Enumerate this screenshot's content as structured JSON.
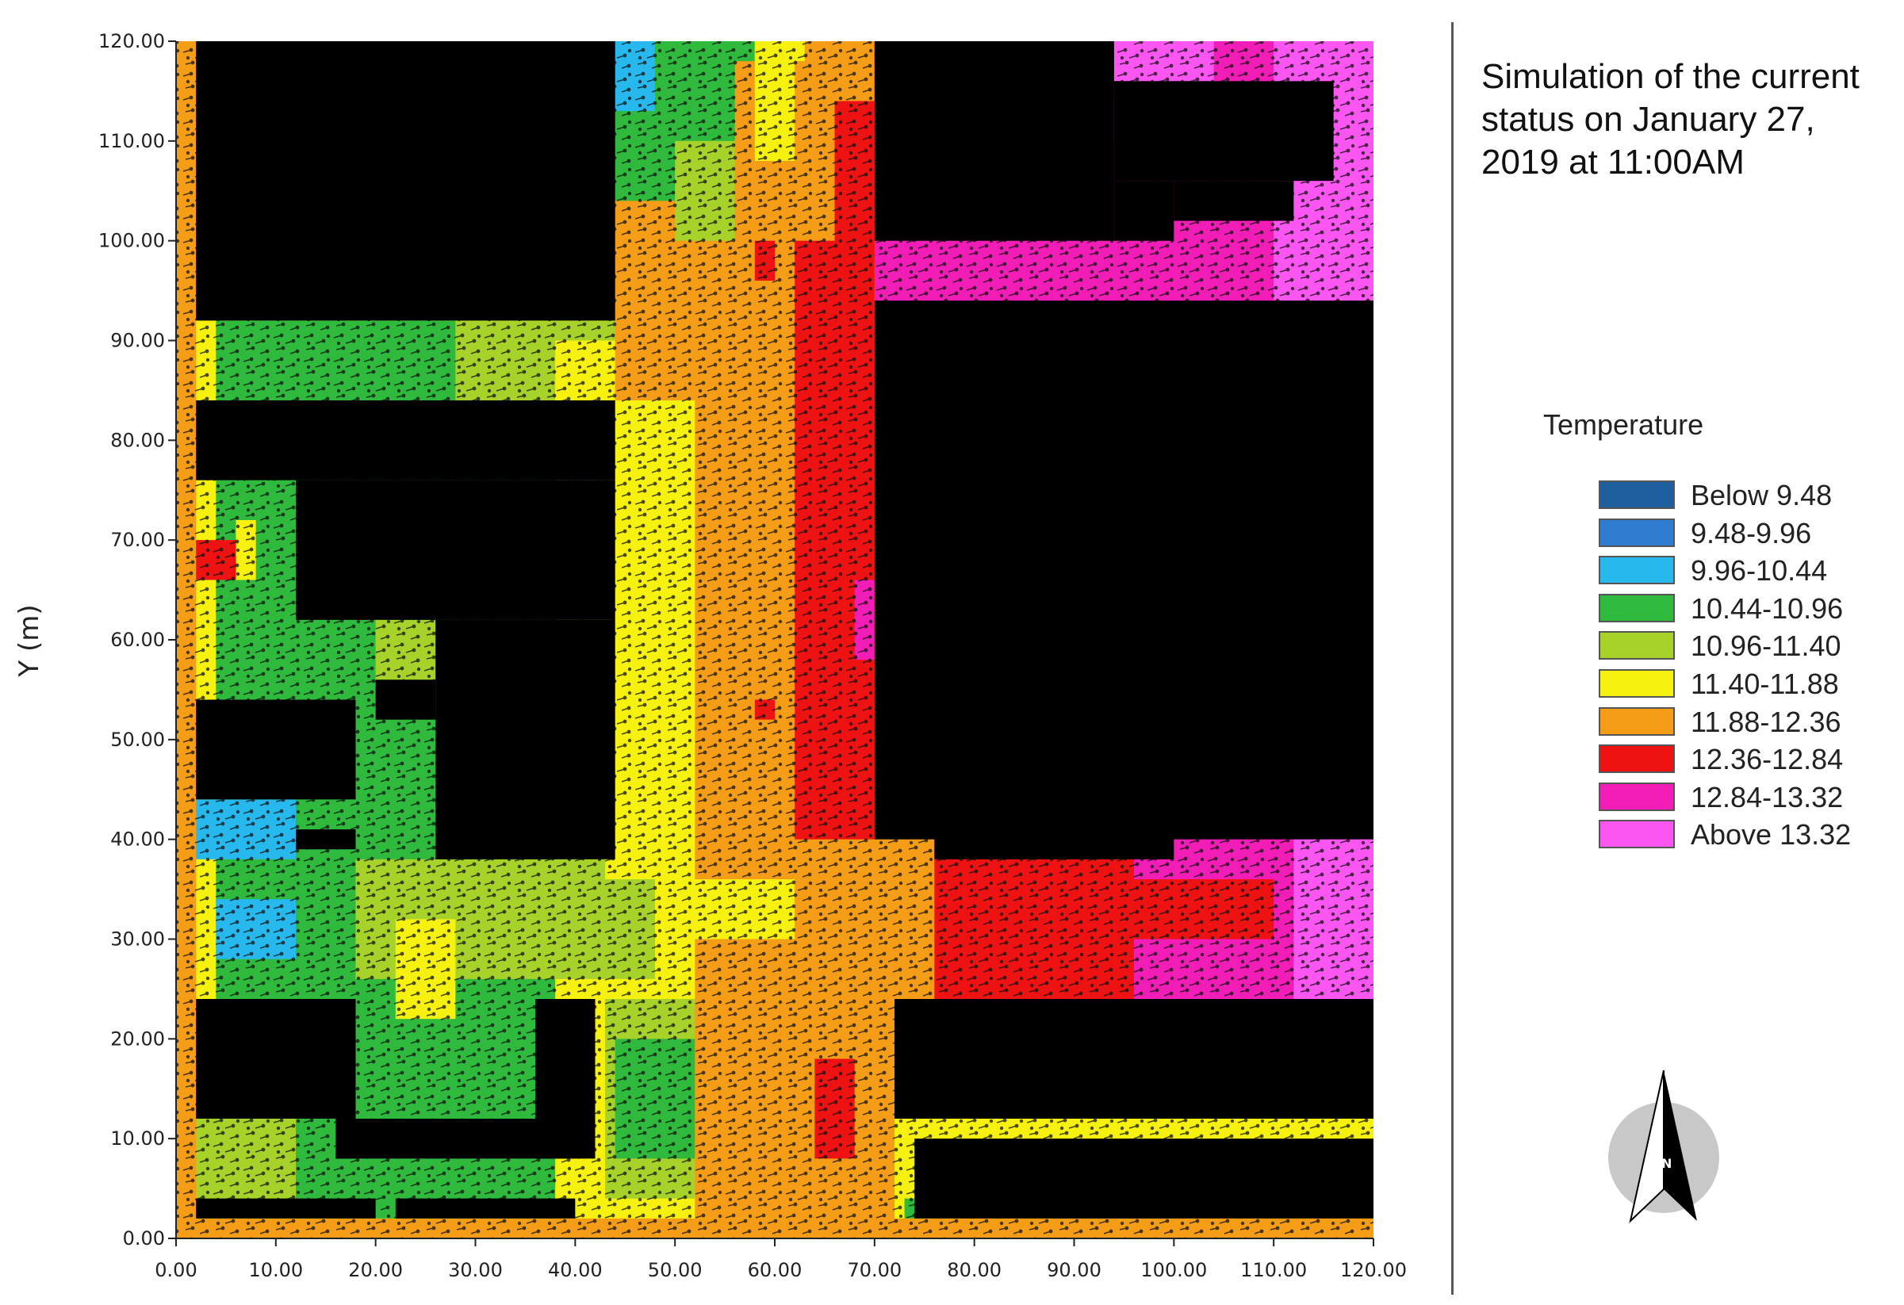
{
  "title": "Simulation of the current status on January 27, 2019 at 11:00AM",
  "legend": {
    "title": "Temperature",
    "items": [
      {
        "label": "Below 9.48",
        "color": "#1f5f9e"
      },
      {
        "label": "9.48-9.96",
        "color": "#2f7bd0"
      },
      {
        "label": "9.96-10.44",
        "color": "#27b8ee"
      },
      {
        "label": "10.44-10.96",
        "color": "#2fba3d"
      },
      {
        "label": "10.96-11.40",
        "color": "#a6d22a"
      },
      {
        "label": "11.40-11.88",
        "color": "#f6f10e"
      },
      {
        "label": "11.88-12.36",
        "color": "#f59d16"
      },
      {
        "label": "12.36-12.84",
        "color": "#ee1212"
      },
      {
        "label": "12.84-13.32",
        "color": "#f21cb6"
      },
      {
        "label": "Above 13.32",
        "color": "#fb55f2"
      }
    ]
  },
  "compass": {
    "letter": "N",
    "icon": "north-arrow-icon"
  },
  "chart_data": {
    "type": "heatmap",
    "title": "Simulation of the current status on January 27, 2019 at 11:00AM",
    "xlabel": "",
    "ylabel": "Y (m)",
    "xlim": [
      0,
      120
    ],
    "ylim": [
      0,
      120
    ],
    "x_ticks": [
      "0.00",
      "10.00",
      "20.00",
      "30.00",
      "40.00",
      "50.00",
      "60.00",
      "70.00",
      "80.00",
      "90.00",
      "100.00",
      "110.00",
      "120.00"
    ],
    "y_ticks": [
      "0.00",
      "10.00",
      "20.00",
      "30.00",
      "40.00",
      "50.00",
      "60.00",
      "70.00",
      "80.00",
      "90.00",
      "100.00",
      "110.00",
      "120.00"
    ],
    "categories": [
      "Below 9.48",
      "9.48-9.96",
      "9.96-10.44",
      "10.44-10.96",
      "10.96-11.40",
      "11.40-11.88",
      "11.88-12.36",
      "12.36-12.84",
      "12.84-13.32",
      "Above 13.32"
    ],
    "building_color": "#000000",
    "regions": [
      {
        "cls": "11.88-12.36",
        "x": [
          0,
          120
        ],
        "y": [
          0,
          120
        ]
      },
      {
        "cls": "11.40-11.88",
        "x": [
          2,
          62
        ],
        "y": [
          2,
          92
        ]
      },
      {
        "cls": "10.44-10.96",
        "x": [
          2,
          38
        ],
        "y": [
          2,
          92
        ]
      },
      {
        "cls": "10.96-11.40",
        "x": [
          2,
          12
        ],
        "y": [
          2,
          20
        ]
      },
      {
        "cls": "10.96-11.40",
        "x": [
          18,
          48
        ],
        "y": [
          26,
          38
        ]
      },
      {
        "cls": "10.96-11.40",
        "x": [
          28,
          47
        ],
        "y": [
          84,
          92
        ]
      },
      {
        "cls": "10.96-11.40",
        "x": [
          20,
          26
        ],
        "y": [
          56,
          62
        ]
      },
      {
        "cls": "11.40-11.88",
        "x": [
          38,
          47
        ],
        "y": [
          84,
          90
        ]
      },
      {
        "cls": "11.40-11.88",
        "x": [
          43,
          55
        ],
        "y": [
          36,
          44
        ]
      },
      {
        "cls": "11.40-11.88",
        "x": [
          44,
          56
        ],
        "y": [
          46,
          84
        ]
      },
      {
        "cls": "11.40-11.88",
        "x": [
          2,
          4
        ],
        "y": [
          84,
          92
        ]
      },
      {
        "cls": "11.40-11.88",
        "x": [
          2,
          4
        ],
        "y": [
          22,
          84
        ]
      },
      {
        "cls": "10.96-11.40",
        "x": [
          43,
          55
        ],
        "y": [
          4,
          24
        ]
      },
      {
        "cls": "10.44-10.96",
        "x": [
          44,
          52
        ],
        "y": [
          8,
          20
        ]
      },
      {
        "cls": "11.88-12.36",
        "x": [
          52,
          62
        ],
        "y": [
          36,
          84
        ]
      },
      {
        "cls": "11.88-12.36",
        "x": [
          44,
          62
        ],
        "y": [
          84,
          112
        ]
      },
      {
        "cls": "11.88-12.36",
        "x": [
          52,
          70
        ],
        "y": [
          2,
          30
        ]
      },
      {
        "cls": "10.44-10.96",
        "x": [
          44,
          58
        ],
        "y": [
          104,
          120
        ]
      },
      {
        "cls": "10.96-11.40",
        "x": [
          50,
          58
        ],
        "y": [
          100,
          110
        ]
      },
      {
        "cls": "11.40-11.88",
        "x": [
          58,
          63
        ],
        "y": [
          112,
          120
        ]
      },
      {
        "cls": "9.96-10.44",
        "x": [
          44,
          48
        ],
        "y": [
          113,
          120
        ]
      },
      {
        "cls": "11.88-12.36",
        "x": [
          56,
          70
        ],
        "y": [
          80,
          118
        ]
      },
      {
        "cls": "12.36-12.84",
        "x": [
          62,
          70
        ],
        "y": [
          40,
          100
        ]
      },
      {
        "cls": "12.36-12.84",
        "x": [
          66,
          70
        ],
        "y": [
          98,
          114
        ]
      },
      {
        "cls": "12.36-12.84",
        "x": [
          58,
          60
        ],
        "y": [
          96,
          100
        ]
      },
      {
        "cls": "12.36-12.84",
        "x": [
          58,
          60
        ],
        "y": [
          52,
          54
        ]
      },
      {
        "cls": "12.36-12.84",
        "x": [
          64,
          68
        ],
        "y": [
          8,
          18
        ]
      },
      {
        "cls": "12.36-12.84",
        "x": [
          76,
          120
        ],
        "y": [
          24,
          40
        ]
      },
      {
        "cls": "12.84-13.32",
        "x": [
          70,
          120
        ],
        "y": [
          84,
          120
        ]
      },
      {
        "cls": "12.84-13.32",
        "x": [
          70,
          76
        ],
        "y": [
          80,
          88
        ]
      },
      {
        "cls": "12.84-13.32",
        "x": [
          68,
          70
        ],
        "y": [
          58,
          66
        ]
      },
      {
        "cls": "Above 13.32",
        "x": [
          110,
          120
        ],
        "y": [
          94,
          120
        ]
      },
      {
        "cls": "Above 13.32",
        "x": [
          94,
          104
        ],
        "y": [
          116,
          120
        ]
      },
      {
        "cls": "Above 13.32",
        "x": [
          90,
          94
        ],
        "y": [
          110,
          114
        ]
      },
      {
        "cls": "12.84-13.32",
        "x": [
          96,
          120
        ],
        "y": [
          24,
          50
        ]
      },
      {
        "cls": "12.84-13.32",
        "x": [
          88,
          96
        ],
        "y": [
          40,
          50
        ]
      },
      {
        "cls": "12.84-13.32",
        "x": [
          96,
          100
        ],
        "y": [
          50,
          56
        ]
      },
      {
        "cls": "Above 13.32",
        "x": [
          112,
          120
        ],
        "y": [
          24,
          50
        ]
      },
      {
        "cls": "12.36-12.84",
        "x": [
          84,
          110
        ],
        "y": [
          30,
          36
        ]
      },
      {
        "cls": "11.40-11.88",
        "x": [
          72,
          120
        ],
        "y": [
          10,
          12
        ]
      },
      {
        "cls": "11.40-11.88",
        "x": [
          100,
          120
        ],
        "y": [
          10,
          14
        ]
      },
      {
        "cls": "11.40-11.88",
        "x": [
          72,
          76
        ],
        "y": [
          2,
          10
        ]
      },
      {
        "cls": "10.44-10.96",
        "x": [
          73,
          75
        ],
        "y": [
          2,
          4
        ]
      },
      {
        "cls": "11.40-11.88",
        "x": [
          58,
          62
        ],
        "y": [
          108,
          120
        ]
      },
      {
        "cls": "11.40-11.88",
        "x": [
          35,
          37
        ],
        "y": [
          46,
          50
        ]
      },
      {
        "cls": "11.40-11.88",
        "x": [
          6,
          8
        ],
        "y": [
          66,
          72
        ]
      },
      {
        "cls": "11.40-11.88",
        "x": [
          18,
          22
        ],
        "y": [
          62,
          66
        ]
      },
      {
        "cls": "11.40-11.88",
        "x": [
          22,
          28
        ],
        "y": [
          22,
          32
        ]
      },
      {
        "cls": "12.36-12.84",
        "x": [
          2,
          6
        ],
        "y": [
          66,
          70
        ]
      },
      {
        "cls": "12.36-12.84",
        "x": [
          18,
          20
        ],
        "y": [
          62,
          66
        ]
      },
      {
        "cls": "9.96-10.44",
        "x": [
          2,
          12
        ],
        "y": [
          38,
          44
        ]
      },
      {
        "cls": "9.96-10.44",
        "x": [
          4,
          12
        ],
        "y": [
          28,
          34
        ]
      },
      {
        "cls": "9.96-10.44",
        "x": [
          8,
          14
        ],
        "y": [
          114,
          120
        ]
      },
      {
        "cls": "9.48-9.96",
        "x": [
          8,
          14
        ],
        "y": [
          108,
          114
        ]
      },
      {
        "cls": "9.48-9.96",
        "x": [
          88,
          100
        ],
        "y": [
          2,
          6
        ]
      }
    ],
    "buildings": [
      {
        "x": [
          2,
          44
        ],
        "y": [
          92,
          120
        ]
      },
      {
        "x": [
          70,
          94
        ],
        "y": [
          100,
          120
        ]
      },
      {
        "x": [
          94,
          116
        ],
        "y": [
          106,
          116
        ]
      },
      {
        "x": [
          94,
          100
        ],
        "y": [
          100,
          106
        ]
      },
      {
        "x": [
          100,
          112
        ],
        "y": [
          102,
          106
        ]
      },
      {
        "x": [
          70,
          120
        ],
        "y": [
          40,
          94
        ]
      },
      {
        "x": [
          76,
          100
        ],
        "y": [
          38,
          42
        ]
      },
      {
        "x": [
          2,
          44
        ],
        "y": [
          76,
          84
        ]
      },
      {
        "x": [
          12,
          44
        ],
        "y": [
          62,
          76
        ]
      },
      {
        "x": [
          26,
          44
        ],
        "y": [
          38,
          62
        ]
      },
      {
        "x": [
          20,
          26
        ],
        "y": [
          52,
          56
        ]
      },
      {
        "x": [
          2,
          18
        ],
        "y": [
          44,
          54
        ]
      },
      {
        "x": [
          12,
          18
        ],
        "y": [
          39,
          41
        ]
      },
      {
        "x": [
          2,
          18
        ],
        "y": [
          12,
          24
        ]
      },
      {
        "x": [
          16,
          18
        ],
        "y": [
          8,
          12
        ]
      },
      {
        "x": [
          16,
          40
        ],
        "y": [
          8,
          12
        ]
      },
      {
        "x": [
          36,
          42
        ],
        "y": [
          8,
          24
        ]
      },
      {
        "x": [
          72,
          120
        ],
        "y": [
          12,
          24
        ]
      },
      {
        "x": [
          74,
          120
        ],
        "y": [
          2,
          10
        ]
      },
      {
        "x": [
          2,
          20
        ],
        "y": [
          2,
          4
        ]
      },
      {
        "x": [
          22,
          40
        ],
        "y": [
          2,
          4
        ]
      }
    ]
  }
}
